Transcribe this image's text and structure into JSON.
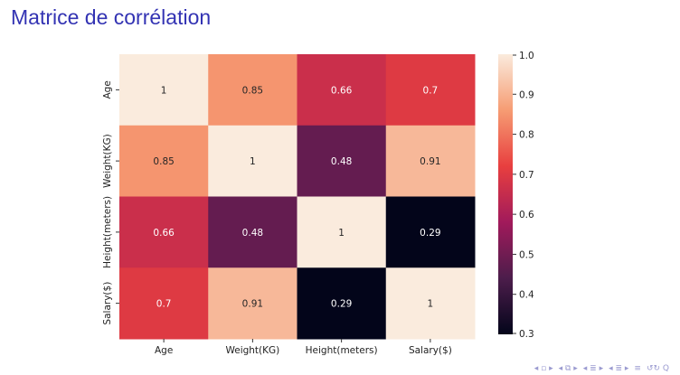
{
  "slide": {
    "title": "Matrice de corrélation"
  },
  "chart_data": {
    "type": "heatmap",
    "row_labels": [
      "Age",
      "Weight(KG)",
      "Height(meters)",
      "Salary($)"
    ],
    "col_labels": [
      "Age",
      "Weight(KG)",
      "Height(meters)",
      "Salary($)"
    ],
    "matrix": [
      [
        1,
        0.85,
        0.66,
        0.7
      ],
      [
        0.85,
        1,
        0.48,
        0.91
      ],
      [
        0.66,
        0.48,
        1,
        0.29
      ],
      [
        0.7,
        0.91,
        0.29,
        1
      ]
    ],
    "cell_labels": [
      [
        "1",
        "0.85",
        "0.66",
        "0.7"
      ],
      [
        "0.85",
        "1",
        "0.48",
        "0.91"
      ],
      [
        "0.66",
        "0.48",
        "1",
        "0.29"
      ],
      [
        "0.7",
        "0.91",
        "0.29",
        "1"
      ]
    ],
    "colorbar": {
      "min": 0.3,
      "max": 1.0,
      "ticks": [
        "1.0",
        "0.9",
        "0.8",
        "0.7",
        "0.6",
        "0.5",
        "0.4",
        "0.3"
      ],
      "colormap": "rocket",
      "stops": [
        "#03051a",
        "#4c1d4b",
        "#a11a5b",
        "#e83f3f",
        "#f69c73",
        "#faebdd"
      ]
    }
  },
  "nav": {
    "icons": [
      "nav-left-icon",
      "nav-frame-icon",
      "nav-section-icon",
      "nav-subsection-icon",
      "nav-align-icon",
      "nav-search-icon"
    ],
    "glyphs": [
      "◂ ▫ ▸",
      "◂ ⧉ ▸",
      "◂ ≣ ▸",
      "◂ ≣ ▸",
      "≡",
      "↺↻ Q"
    ]
  }
}
